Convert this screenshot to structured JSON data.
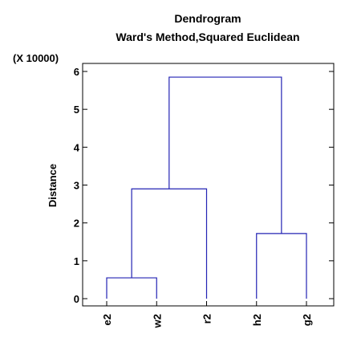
{
  "chart_data": {
    "type": "dendrogram",
    "title": "Dendrogram",
    "subtitle": "Ward's Method,Squared Euclidean",
    "ylabel": "Distance",
    "yscale_label": "(X 10000)",
    "ylim": [
      0,
      6.1
    ],
    "yticks": [
      0,
      1,
      2,
      3,
      4,
      5,
      6
    ],
    "leaves": [
      "e2",
      "w2",
      "r2",
      "h2",
      "g2"
    ],
    "merges": [
      {
        "left": "e2",
        "right": "w2",
        "height": 0.55
      },
      {
        "left": "h2",
        "right": "g2",
        "height": 1.72
      },
      {
        "left": "e2+w2",
        "right": "r2",
        "height": 2.9
      },
      {
        "left": "e2+w2+r2",
        "right": "h2+g2",
        "height": 5.85
      }
    ],
    "grid": false,
    "line_color": "#2323b4"
  }
}
